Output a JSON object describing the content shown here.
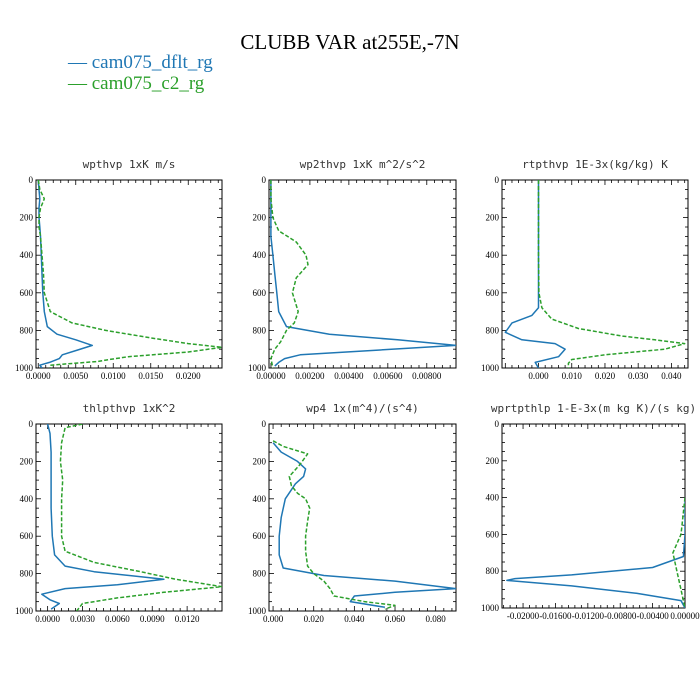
{
  "title": "CLUBB VAR at255E,-7N",
  "legend": [
    {
      "label": "— cam075_dflt_rg",
      "color": "#1f77b4"
    },
    {
      "label": "— cam075_c2_rg",
      "color": "#2ca02c"
    }
  ],
  "chart_data": [
    {
      "type": "line",
      "title": "wpthvp  1xK m/s",
      "xlim": [
        -0.0003,
        0.0245
      ],
      "ylim": [
        1000,
        0
      ],
      "xticks": [
        "0.0000",
        "0.0050",
        "0.0100",
        "0.0150",
        "0.0200"
      ],
      "xtick_values": [
        0,
        0.005,
        0.01,
        0.015,
        0.02
      ],
      "yticks": [
        0,
        200,
        400,
        600,
        800,
        1000
      ],
      "series": [
        {
          "name": "cam075_dflt_rg",
          "color": "#1f77b4",
          "dash": "",
          "points": [
            [
              0,
              0
            ],
            [
              0.0001,
              50
            ],
            [
              0.0002,
              100
            ],
            [
              0.0001,
              150
            ],
            [
              0.0001,
              200
            ],
            [
              0.0002,
              250
            ],
            [
              0.0003,
              300
            ],
            [
              0.0004,
              400
            ],
            [
              0.0005,
              500
            ],
            [
              0.0006,
              600
            ],
            [
              0.0008,
              700
            ],
            [
              0.0012,
              780
            ],
            [
              0.0025,
              820
            ],
            [
              0.005,
              850
            ],
            [
              0.0072,
              880
            ],
            [
              0.0052,
              905
            ],
            [
              0.0032,
              930
            ],
            [
              0.0028,
              950
            ],
            [
              0.0015,
              970
            ],
            [
              0.0002,
              985
            ],
            [
              0.0005,
              1000
            ]
          ]
        },
        {
          "name": "cam075_c2_rg",
          "color": "#2ca02c",
          "dash": "4,2",
          "points": [
            [
              0,
              0
            ],
            [
              0.0002,
              50
            ],
            [
              0.0008,
              100
            ],
            [
              0.0003,
              150
            ],
            [
              0.0001,
              200
            ],
            [
              0.0001,
              250
            ],
            [
              0.0003,
              300
            ],
            [
              0.0005,
              400
            ],
            [
              0.0007,
              500
            ],
            [
              0.0008,
              600
            ],
            [
              0.0016,
              700
            ],
            [
              0.0045,
              760
            ],
            [
              0.009,
              800
            ],
            [
              0.015,
              840
            ],
            [
              0.02,
              870
            ],
            [
              0.0245,
              890
            ],
            [
              0.02,
              915
            ],
            [
              0.012,
              940
            ],
            [
              0.0095,
              955
            ],
            [
              0.008,
              965
            ],
            [
              0.0016,
              985
            ],
            [
              0.0016,
              1000
            ]
          ]
        }
      ]
    },
    {
      "type": "line",
      "title": "wp2thvp  1xK m^2/s^2",
      "xlim": [
        -0.0001,
        0.0095
      ],
      "ylim": [
        1000,
        0
      ],
      "xticks": [
        "0.00000",
        "0.00200",
        "0.00400",
        "0.00600",
        "0.00800"
      ],
      "xtick_values": [
        0,
        0.002,
        0.004,
        0.006,
        0.008
      ],
      "yticks": [
        0,
        200,
        400,
        600,
        800,
        1000
      ],
      "series": [
        {
          "name": "cam075_dflt_rg",
          "color": "#1f77b4",
          "dash": "",
          "points": [
            [
              0,
              0
            ],
            [
              0,
              100
            ],
            [
              0,
              200
            ],
            [
              0,
              300
            ],
            [
              0.0001,
              400
            ],
            [
              0.0002,
              500
            ],
            [
              0.0003,
              600
            ],
            [
              0.0004,
              700
            ],
            [
              0.0008,
              780
            ],
            [
              0.003,
              820
            ],
            [
              0.0065,
              850
            ],
            [
              0.0095,
              880
            ],
            [
              0.0055,
              905
            ],
            [
              0.0015,
              930
            ],
            [
              0.0007,
              950
            ],
            [
              0.0004,
              970
            ],
            [
              0.0002,
              990
            ]
          ]
        },
        {
          "name": "cam075_c2_rg",
          "color": "#2ca02c",
          "dash": "4,2",
          "points": [
            [
              0,
              0
            ],
            [
              0,
              100
            ],
            [
              0.0001,
              200
            ],
            [
              0.0004,
              270
            ],
            [
              0.0013,
              330
            ],
            [
              0.0018,
              400
            ],
            [
              0.0019,
              450
            ],
            [
              0.0013,
              520
            ],
            [
              0.0011,
              600
            ],
            [
              0.0014,
              700
            ],
            [
              0.0012,
              760
            ],
            [
              0.0008,
              800
            ],
            [
              0.0005,
              860
            ],
            [
              0.0002,
              900
            ],
            [
              0,
              950
            ],
            [
              0.0001,
              1000
            ]
          ]
        }
      ]
    },
    {
      "type": "line",
      "title": "rtpthvp  1E-3x(kg/kg) K",
      "xlim": [
        -0.011,
        0.045
      ],
      "ylim": [
        1000,
        0
      ],
      "xticks": [
        "0.000",
        "0.010",
        "0.020",
        "0.030",
        "0.040"
      ],
      "xtick_values": [
        0,
        0.01,
        0.02,
        0.03,
        0.04
      ],
      "yticks": [
        0,
        200,
        400,
        600,
        800,
        1000
      ],
      "series": [
        {
          "name": "cam075_dflt_rg",
          "color": "#1f77b4",
          "dash": "",
          "points": [
            [
              0,
              0
            ],
            [
              0,
              200
            ],
            [
              0,
              400
            ],
            [
              0,
              600
            ],
            [
              0,
              680
            ],
            [
              -0.002,
              720
            ],
            [
              -0.008,
              760
            ],
            [
              -0.01,
              810
            ],
            [
              -0.005,
              850
            ],
            [
              0.005,
              870
            ],
            [
              0.008,
              900
            ],
            [
              0.006,
              940
            ],
            [
              -0.001,
              970
            ],
            [
              0,
              1000
            ]
          ]
        },
        {
          "name": "cam075_c2_rg",
          "color": "#2ca02c",
          "dash": "4,2",
          "points": [
            [
              0,
              0
            ],
            [
              0,
              200
            ],
            [
              0,
              400
            ],
            [
              0.0001,
              600
            ],
            [
              0.001,
              680
            ],
            [
              0.004,
              740
            ],
            [
              0.012,
              790
            ],
            [
              0.025,
              830
            ],
            [
              0.035,
              850
            ],
            [
              0.044,
              870
            ],
            [
              0.038,
              900
            ],
            [
              0.02,
              930
            ],
            [
              0.01,
              955
            ],
            [
              0.009,
              975
            ],
            [
              0.009,
              1000
            ]
          ]
        }
      ]
    },
    {
      "type": "line",
      "title": "thlpthvp  1xK^2",
      "xlim": [
        -0.001,
        0.015
      ],
      "ylim": [
        1000,
        0
      ],
      "xticks": [
        "0.0000",
        "0.0030",
        "0.0060",
        "0.0090",
        "0.0120"
      ],
      "xtick_values": [
        0,
        0.003,
        0.006,
        0.009,
        0.012
      ],
      "yticks": [
        0,
        200,
        400,
        600,
        800,
        1000
      ],
      "series": [
        {
          "name": "cam075_dflt_rg",
          "color": "#1f77b4",
          "dash": "",
          "points": [
            [
              0,
              0
            ],
            [
              0.0002,
              50
            ],
            [
              0.0003,
              150
            ],
            [
              0.0003,
              300
            ],
            [
              0.0003,
              450
            ],
            [
              0.0004,
              600
            ],
            [
              0.0006,
              700
            ],
            [
              0.0015,
              760
            ],
            [
              0.004,
              790
            ],
            [
              0.01,
              830
            ],
            [
              0.006,
              860
            ],
            [
              0.0015,
              880
            ],
            [
              -0.0005,
              910
            ],
            [
              0.0002,
              940
            ],
            [
              0.001,
              960
            ],
            [
              0.0003,
              990
            ]
          ]
        },
        {
          "name": "cam075_c2_rg",
          "color": "#2ca02c",
          "dash": "4,2",
          "points": [
            [
              0.003,
              0
            ],
            [
              0.0015,
              20
            ],
            [
              0.0012,
              100
            ],
            [
              0.0011,
              200
            ],
            [
              0.0013,
              300
            ],
            [
              0.0012,
              400
            ],
            [
              0.0012,
              500
            ],
            [
              0.0012,
              600
            ],
            [
              0.0015,
              680
            ],
            [
              0.004,
              740
            ],
            [
              0.008,
              790
            ],
            [
              0.011,
              830
            ],
            [
              0.015,
              870
            ],
            [
              0.01,
              900
            ],
            [
              0.006,
              930
            ],
            [
              0.003,
              960
            ],
            [
              0.0025,
              1000
            ]
          ]
        }
      ]
    },
    {
      "type": "line",
      "title": "wp4  1x(m^4)/(s^4)",
      "xlim": [
        -0.002,
        0.09
      ],
      "ylim": [
        1000,
        0
      ],
      "xticks": [
        "0.000",
        "0.020",
        "0.040",
        "0.060",
        "0.080"
      ],
      "xtick_values": [
        0,
        0.02,
        0.04,
        0.06,
        0.08
      ],
      "yticks": [
        0,
        200,
        400,
        600,
        800,
        1000
      ],
      "series": [
        {
          "name": "cam075_dflt_rg",
          "color": "#1f77b4",
          "dash": "",
          "points": [
            [
              0,
              100
            ],
            [
              0.004,
              150
            ],
            [
              0.012,
              200
            ],
            [
              0.016,
              240
            ],
            [
              0.015,
              280
            ],
            [
              0.011,
              320
            ],
            [
              0.006,
              400
            ],
            [
              0.004,
              500
            ],
            [
              0.003,
              600
            ],
            [
              0.003,
              700
            ],
            [
              0.005,
              770
            ],
            [
              0.025,
              810
            ],
            [
              0.06,
              840
            ],
            [
              0.09,
              880
            ],
            [
              0.06,
              900
            ],
            [
              0.04,
              920
            ],
            [
              0.038,
              950
            ],
            [
              0.055,
              980
            ]
          ]
        },
        {
          "name": "cam075_c2_rg",
          "color": "#2ca02c",
          "dash": "4,2",
          "points": [
            [
              0,
              90
            ],
            [
              0.005,
              120
            ],
            [
              0.017,
              160
            ],
            [
              0.013,
              220
            ],
            [
              0.008,
              280
            ],
            [
              0.009,
              330
            ],
            [
              0.012,
              370
            ],
            [
              0.016,
              400
            ],
            [
              0.018,
              450
            ],
            [
              0.017,
              520
            ],
            [
              0.016,
              600
            ],
            [
              0.016,
              680
            ],
            [
              0.017,
              760
            ],
            [
              0.02,
              800
            ],
            [
              0.025,
              840
            ],
            [
              0.028,
              880
            ],
            [
              0.03,
              920
            ],
            [
              0.045,
              950
            ],
            [
              0.06,
              970
            ],
            [
              0.055,
              990
            ]
          ]
        }
      ]
    },
    {
      "type": "line",
      "title": "wprtpthlp  1-E-3x(m kg K)/(s kg)",
      "xlim": [
        -0.0226,
        0
      ],
      "ylim": [
        1000,
        0
      ],
      "xticks": [
        "-0.02000",
        "-0.01600",
        "-0.01200",
        "-0.00800",
        "-0.00400",
        "0.00000"
      ],
      "xtick_values": [
        -0.02,
        -0.016,
        -0.012,
        -0.008,
        -0.004,
        0
      ],
      "yticks": [
        0,
        200,
        400,
        600,
        800,
        1000
      ],
      "series": [
        {
          "name": "cam075_dflt_rg",
          "color": "#1f77b4",
          "dash": "",
          "points": [
            [
              0,
              400
            ],
            [
              0,
              600
            ],
            [
              -0.0002,
              720
            ],
            [
              -0.004,
              780
            ],
            [
              -0.014,
              820
            ],
            [
              -0.021,
              840
            ],
            [
              -0.022,
              850
            ],
            [
              -0.014,
              880
            ],
            [
              -0.006,
              920
            ],
            [
              -0.0005,
              960
            ],
            [
              0,
              1000
            ]
          ]
        },
        {
          "name": "cam075_c2_rg",
          "color": "#2ca02c",
          "dash": "4,2",
          "points": [
            [
              0,
              400
            ],
            [
              -0.0005,
              600
            ],
            [
              -0.0015,
              700
            ],
            [
              -0.001,
              800
            ],
            [
              -0.0005,
              900
            ],
            [
              0,
              1000
            ]
          ]
        }
      ]
    }
  ]
}
